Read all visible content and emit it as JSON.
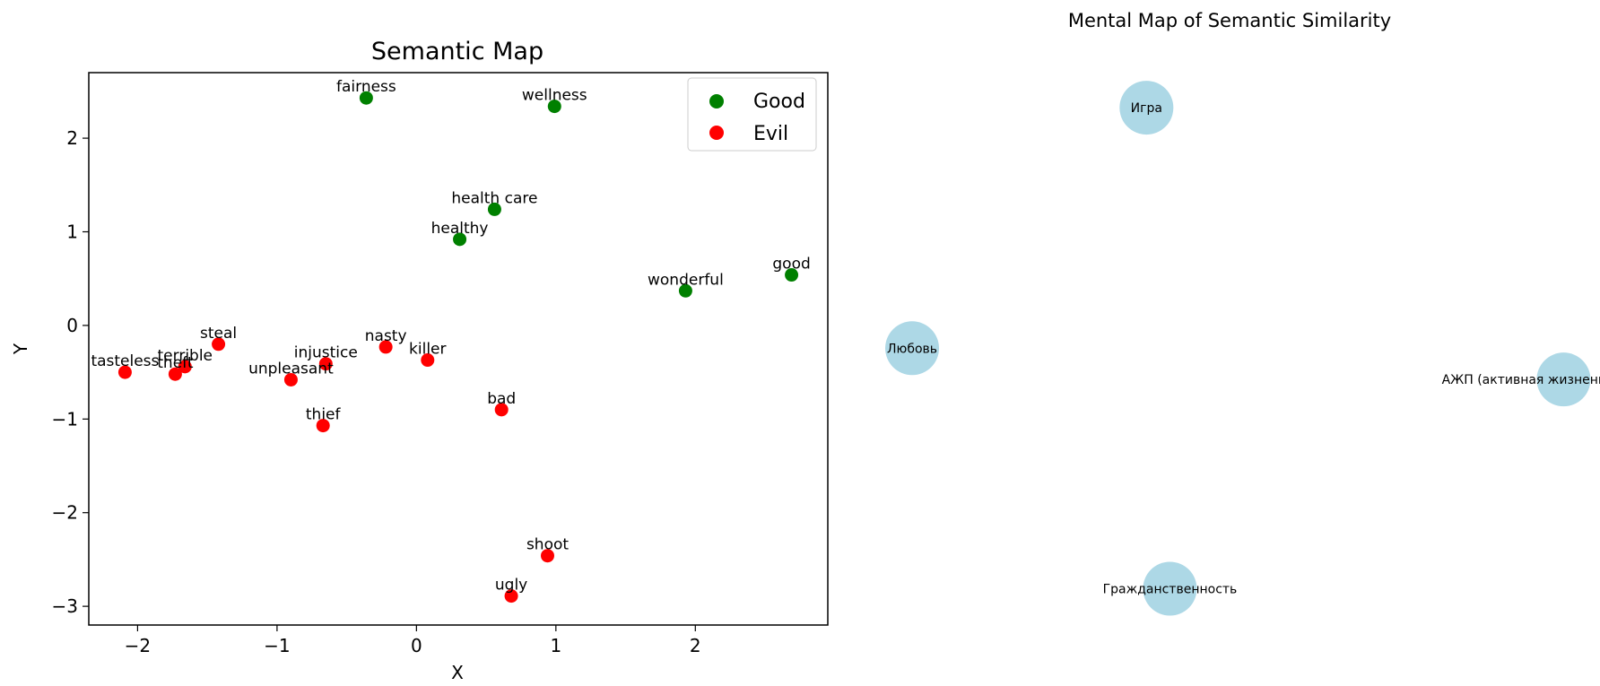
{
  "chart_data": [
    {
      "type": "scatter",
      "title": "Semantic Map",
      "xlabel": "X",
      "ylabel": "Y",
      "xlim": [
        -2.35,
        2.95
      ],
      "ylim": [
        -3.2,
        2.7
      ],
      "xticks": [
        -2,
        -1,
        0,
        1,
        2
      ],
      "yticks": [
        -3,
        -2,
        -1,
        0,
        1,
        2
      ],
      "tick_labels_x": [
        "−2",
        "−1",
        "0",
        "1",
        "2"
      ],
      "tick_labels_y": [
        "−3",
        "−2",
        "−1",
        "0",
        "1",
        "2"
      ],
      "grid": false,
      "legend": "top-right",
      "series": [
        {
          "name": "Good",
          "color": "#008000",
          "points": [
            {
              "label": "fairness",
              "x": -0.36,
              "y": 2.43
            },
            {
              "label": "wellness",
              "x": 0.99,
              "y": 2.34
            },
            {
              "label": "health care",
              "x": 0.56,
              "y": 1.24
            },
            {
              "label": "healthy",
              "x": 0.31,
              "y": 0.92
            },
            {
              "label": "good",
              "x": 2.69,
              "y": 0.54
            },
            {
              "label": "wonderful",
              "x": 1.93,
              "y": 0.37
            }
          ]
        },
        {
          "name": "Evil",
          "color": "#ff0000",
          "points": [
            {
              "label": "steal",
              "x": -1.42,
              "y": -0.2
            },
            {
              "label": "nasty",
              "x": -0.22,
              "y": -0.23
            },
            {
              "label": "injustice",
              "x": -0.65,
              "y": -0.41
            },
            {
              "label": "killer",
              "x": 0.08,
              "y": -0.37
            },
            {
              "label": "terrible",
              "x": -1.66,
              "y": -0.44
            },
            {
              "label": "theft",
              "x": -1.73,
              "y": -0.52
            },
            {
              "label": "tasteless",
              "x": -2.09,
              "y": -0.5
            },
            {
              "label": "unpleasant",
              "x": -0.9,
              "y": -0.58
            },
            {
              "label": "bad",
              "x": 0.61,
              "y": -0.9
            },
            {
              "label": "thief",
              "x": -0.67,
              "y": -1.07
            },
            {
              "label": "shoot",
              "x": 0.94,
              "y": -2.46
            },
            {
              "label": "ugly",
              "x": 0.68,
              "y": -2.89
            }
          ]
        }
      ]
    },
    {
      "type": "network",
      "title": "Mental Map of Semantic Similarity",
      "node_color": "#add8e6",
      "nodes": [
        {
          "label": "Игра",
          "x": 0.0,
          "y": 1.0
        },
        {
          "label": "Любовь",
          "x": -1.0,
          "y": 0.0
        },
        {
          "label": "АЖП (активная жизненная позиция)",
          "x": 1.78,
          "y": -0.13
        },
        {
          "label": "Гражданственность",
          "x": 0.1,
          "y": -1.0
        }
      ],
      "xlim": [
        -1.18,
        1.92
      ],
      "ylim": [
        -1.33,
        1.28
      ]
    }
  ]
}
